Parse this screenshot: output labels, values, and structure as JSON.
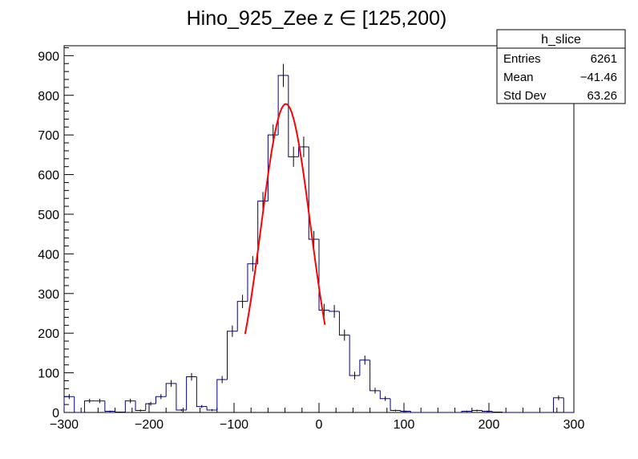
{
  "chart_data": {
    "type": "bar",
    "title": "Hino_925_Zee z  ∈ [125,200)",
    "xlabel": "",
    "ylabel": "",
    "xlim": [
      -300,
      300
    ],
    "ylim": [
      0,
      925
    ],
    "bin_width": 12,
    "x_ticks": [
      -300,
      -200,
      -100,
      0,
      100,
      200,
      300
    ],
    "y_ticks": [
      0,
      100,
      200,
      300,
      400,
      500,
      600,
      700,
      800,
      900
    ],
    "grid": false,
    "histogram_color": "#000080",
    "bins": [
      {
        "x": -294,
        "y": 40
      },
      {
        "x": -282,
        "y": 0
      },
      {
        "x": -270,
        "y": 29
      },
      {
        "x": -258,
        "y": 29
      },
      {
        "x": -246,
        "y": 3
      },
      {
        "x": -234,
        "y": 1
      },
      {
        "x": -222,
        "y": 29
      },
      {
        "x": -210,
        "y": 5
      },
      {
        "x": -198,
        "y": 22
      },
      {
        "x": -186,
        "y": 40
      },
      {
        "x": -174,
        "y": 73
      },
      {
        "x": -162,
        "y": 6
      },
      {
        "x": -150,
        "y": 90
      },
      {
        "x": -138,
        "y": 15
      },
      {
        "x": -126,
        "y": 6
      },
      {
        "x": -114,
        "y": 83
      },
      {
        "x": -102,
        "y": 205
      },
      {
        "x": -90,
        "y": 280
      },
      {
        "x": -78,
        "y": 375
      },
      {
        "x": -66,
        "y": 533
      },
      {
        "x": -54,
        "y": 700
      },
      {
        "x": -42,
        "y": 850
      },
      {
        "x": -30,
        "y": 645
      },
      {
        "x": -18,
        "y": 670
      },
      {
        "x": -6,
        "y": 437
      },
      {
        "x": 6,
        "y": 258
      },
      {
        "x": 18,
        "y": 255
      },
      {
        "x": 30,
        "y": 195
      },
      {
        "x": 42,
        "y": 93
      },
      {
        "x": 54,
        "y": 132
      },
      {
        "x": 66,
        "y": 55
      },
      {
        "x": 78,
        "y": 35
      },
      {
        "x": 90,
        "y": 5
      },
      {
        "x": 102,
        "y": 3
      },
      {
        "x": 114,
        "y": 0
      },
      {
        "x": 126,
        "y": 0
      },
      {
        "x": 138,
        "y": 0
      },
      {
        "x": 150,
        "y": 0
      },
      {
        "x": 162,
        "y": 0
      },
      {
        "x": 174,
        "y": 3
      },
      {
        "x": 186,
        "y": 5
      },
      {
        "x": 198,
        "y": 3
      },
      {
        "x": 210,
        "y": 1
      },
      {
        "x": 222,
        "y": 0
      },
      {
        "x": 234,
        "y": 0
      },
      {
        "x": 246,
        "y": 0
      },
      {
        "x": 258,
        "y": 0
      },
      {
        "x": 270,
        "y": 0
      },
      {
        "x": 282,
        "y": 37
      },
      {
        "x": 294,
        "y": 0
      }
    ],
    "fit": {
      "type": "gaussian",
      "amplitude": 778,
      "mean": -39,
      "sigma": 29,
      "x_range": [
        -87,
        7
      ],
      "color": "#ff0000"
    },
    "stats_box": {
      "placement": "top-right",
      "name": "h_slice",
      "rows": [
        {
          "label": "Entries",
          "value": "6261"
        },
        {
          "label": "Mean",
          "value": "−41.46"
        },
        {
          "label": "Std Dev",
          "value": "63.26"
        }
      ]
    }
  }
}
